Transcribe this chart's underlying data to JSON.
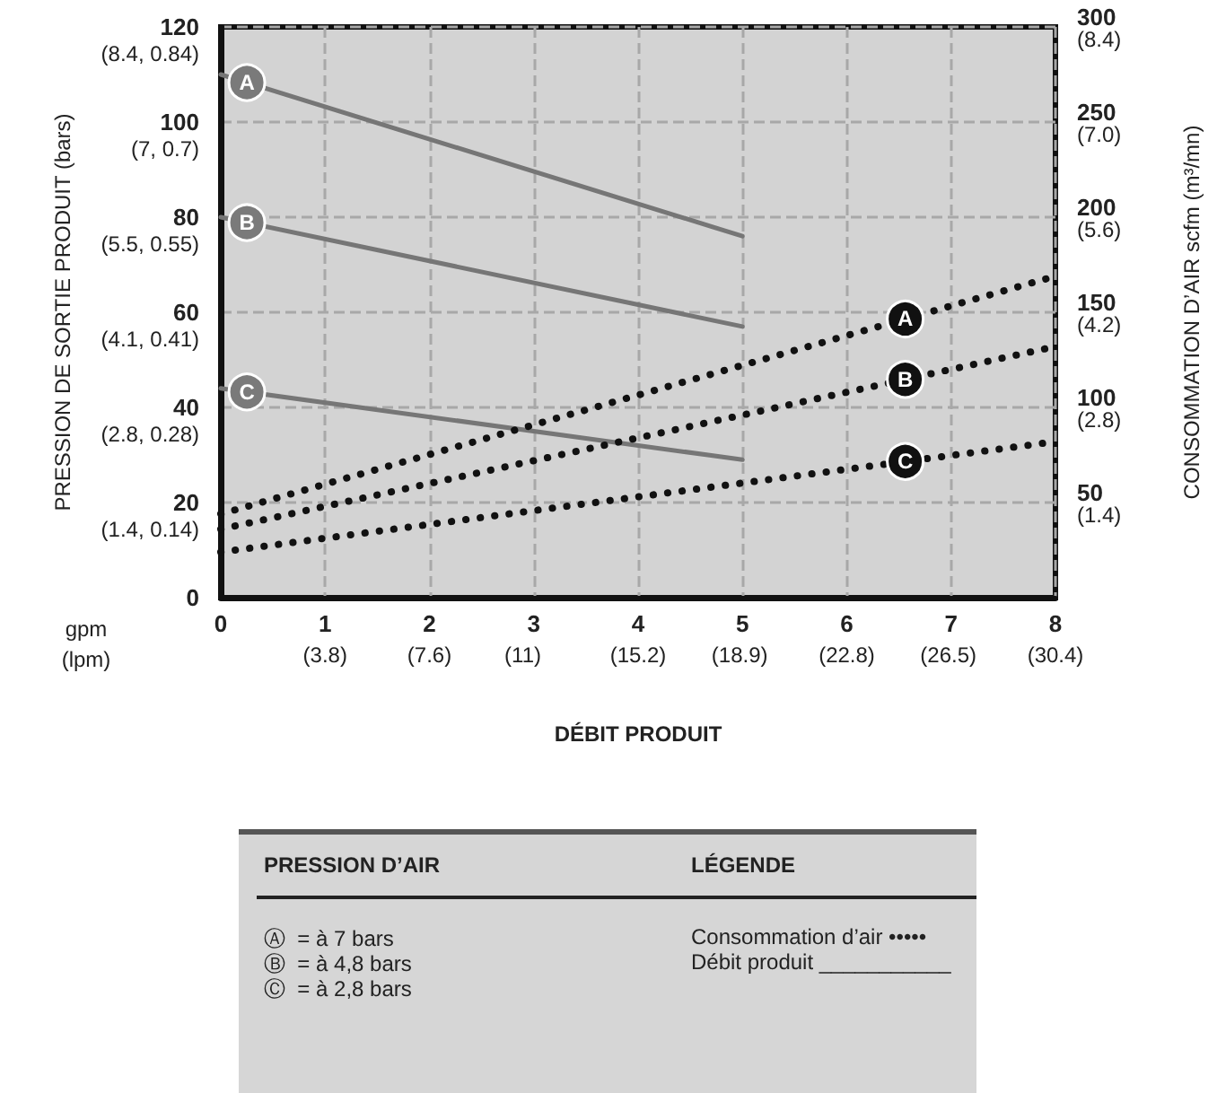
{
  "chart_data": {
    "type": "line",
    "xlabel": "DÉBIT PRODUIT",
    "ylabel": "PRESSION DE SORTIE PRODUIT (bars)",
    "y2label": "CONSOMMATION D’AIR scfm (m³/mn)",
    "xlim": [
      0,
      8
    ],
    "xticks": [
      0,
      1,
      2,
      3,
      4,
      5,
      6,
      7,
      8
    ],
    "x2lim": [
      0,
      30.4
    ],
    "x2ticks": [
      {
        "value": 3.8,
        "label": "(3.8)"
      },
      {
        "value": 7.6,
        "label": "(7.6)"
      },
      {
        "value": 11,
        "label": "(11)"
      },
      {
        "value": 15.2,
        "label": "(15.2)"
      },
      {
        "value": 18.9,
        "label": "(18.9)"
      },
      {
        "value": 22.8,
        "label": "(22.8)"
      },
      {
        "value": 26.5,
        "label": "(26.5)"
      },
      {
        "value": 30.4,
        "label": "(30.4)"
      }
    ],
    "ylim": [
      0,
      120
    ],
    "yticks": [
      0,
      20,
      40,
      60,
      80,
      100,
      120
    ],
    "y2lim": [
      0,
      300
    ],
    "y2ticks": [
      50,
      100,
      150,
      200,
      250,
      300
    ],
    "y3lim": [
      0,
      8.4
    ],
    "y3ticks": [
      {
        "value": 1.4,
        "label": "(1.4)"
      },
      {
        "value": 2.8,
        "label": "(2.8)"
      },
      {
        "value": 4.2,
        "label": "(4.2)"
      },
      {
        "value": 5.6,
        "label": "(5.6)"
      },
      {
        "value": 7,
        "label": "(7.0)"
      },
      {
        "value": 8.4,
        "label": "(8.4)"
      }
    ],
    "grid": true,
    "marker": "none",
    "series": [
      {
        "name": "A",
        "color": "#767676",
        "line_style": "solid",
        "x": [
          0,
          5
        ],
        "values": [
          110,
          76
        ]
      },
      {
        "name": "B",
        "color": "#767676",
        "line_style": "solid",
        "x": [
          0,
          5
        ],
        "values": [
          80,
          57
        ]
      },
      {
        "name": "C",
        "color": "#767676",
        "line_style": "solid",
        "x": [
          0,
          5
        ],
        "values": [
          44,
          29
        ]
      },
      {
        "name": "A",
        "color": "#111111",
        "line_style": "dotted",
        "axis": "y2",
        "x": [
          0,
          8
        ],
        "values": [
          44,
          169
        ]
      },
      {
        "name": "B",
        "color": "#111111",
        "line_style": "dotted",
        "axis": "y2",
        "x": [
          0,
          8
        ],
        "values": [
          36,
          132
        ]
      },
      {
        "name": "C",
        "color": "#111111",
        "line_style": "dotted",
        "axis": "y2",
        "x": [
          0,
          8
        ],
        "values": [
          24,
          82
        ]
      }
    ],
    "annotations": [
      "gpm\n(lpm)",
      "PRESSION D’AIR",
      "LÉGENDE",
      "Ⓐ  = à 7 bars",
      "Ⓑ  = à 4,8 bars",
      "Ⓒ  = à 2,8 bars",
      "Consommation d’air •••••",
      "Débit produit ___________",
      "(1.4, 0.14)",
      "(2.8, 0.28)",
      "(4.1, 0.41)",
      "(5.5, 0.55)",
      "(7, 0.7)",
      "(8.4, 0.84)"
    ]
  }
}
